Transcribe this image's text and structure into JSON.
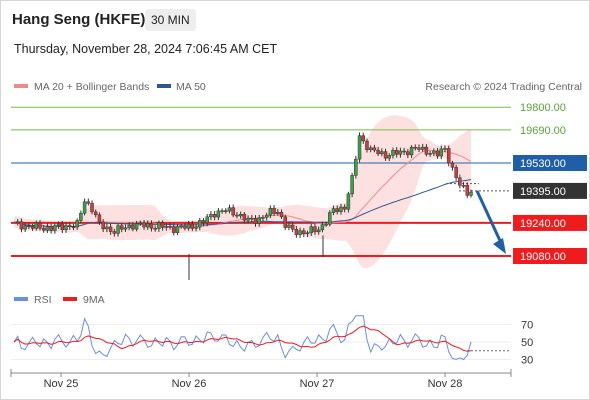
{
  "header": {
    "title": "Hang Seng (HKFE)",
    "timeframe": "30 MIN",
    "datetime": "Thursday, November 28, 2024 7:06:45 AM CET"
  },
  "legend": {
    "bollinger": "MA 20 + Bollinger Bands",
    "ma50": "MA 50",
    "watermark": "Research © 2024 Trading Central"
  },
  "rsi_legend": {
    "rsi": "RSI",
    "ma": "9MA"
  },
  "colors": {
    "resistance": "#7cba4a",
    "pivot": "#1f5fa8",
    "support": "#ee1c1c",
    "current": "#333333",
    "arrow": "#1f5fa8",
    "bollinger": "#f08a8a",
    "ma50": "#2f5597",
    "rsi": "#6a8fe0",
    "rsi_ma": "#ee1c1c"
  },
  "chart_data": [
    {
      "type": "candlestick",
      "title": "",
      "y_range": [
        18920,
        20000
      ],
      "x_labels": [
        "Nov 25",
        "Nov 26",
        "Nov 27",
        "Nov 28"
      ],
      "levels": [
        {
          "value": 19800,
          "label": "19800.00",
          "kind": "resistance"
        },
        {
          "value": 19690,
          "label": "19690.00",
          "kind": "resistance"
        },
        {
          "value": 19530,
          "label": "19530.00",
          "kind": "pivot"
        },
        {
          "value": 19395,
          "label": "19395.00",
          "kind": "current"
        },
        {
          "value": 19240,
          "label": "19240.00",
          "kind": "support"
        },
        {
          "value": 19080,
          "label": "19080.00",
          "kind": "support"
        }
      ],
      "forecast_arrow": {
        "from": 19395,
        "to": 19080
      },
      "series": [
        {
          "name": "MA 20 + Bollinger Bands"
        },
        {
          "name": "MA 50"
        }
      ]
    },
    {
      "type": "line",
      "title": "",
      "y_range": [
        20,
        90
      ],
      "y_ticks": [
        70,
        50,
        30
      ],
      "series": [
        {
          "name": "RSI"
        },
        {
          "name": "9MA"
        }
      ]
    }
  ]
}
